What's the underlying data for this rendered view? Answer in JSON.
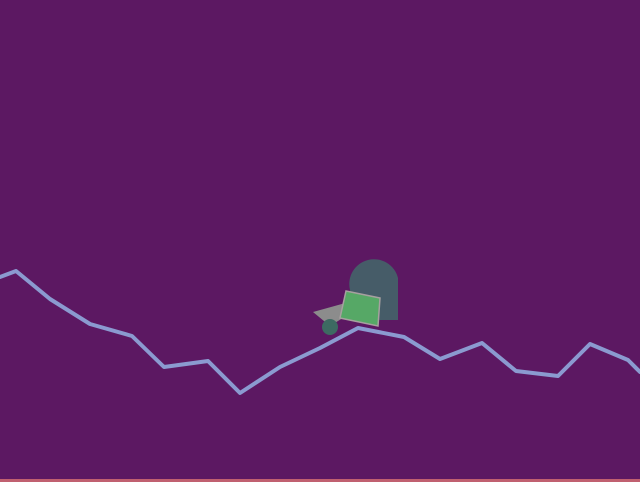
{
  "scene": {
    "type": "2d-physics-game",
    "background_color": "#5c1862",
    "terrain": {
      "stroke_color": "#8b9ad0"
    },
    "walker": {
      "head_color": "#465c68",
      "torso_color": "#56a866",
      "torso_outline_color": "#a7a0a0",
      "leg_color": "#8c8c8c",
      "hip_color": "#3d6a62"
    },
    "bottom_border_color": "#c06070"
  }
}
